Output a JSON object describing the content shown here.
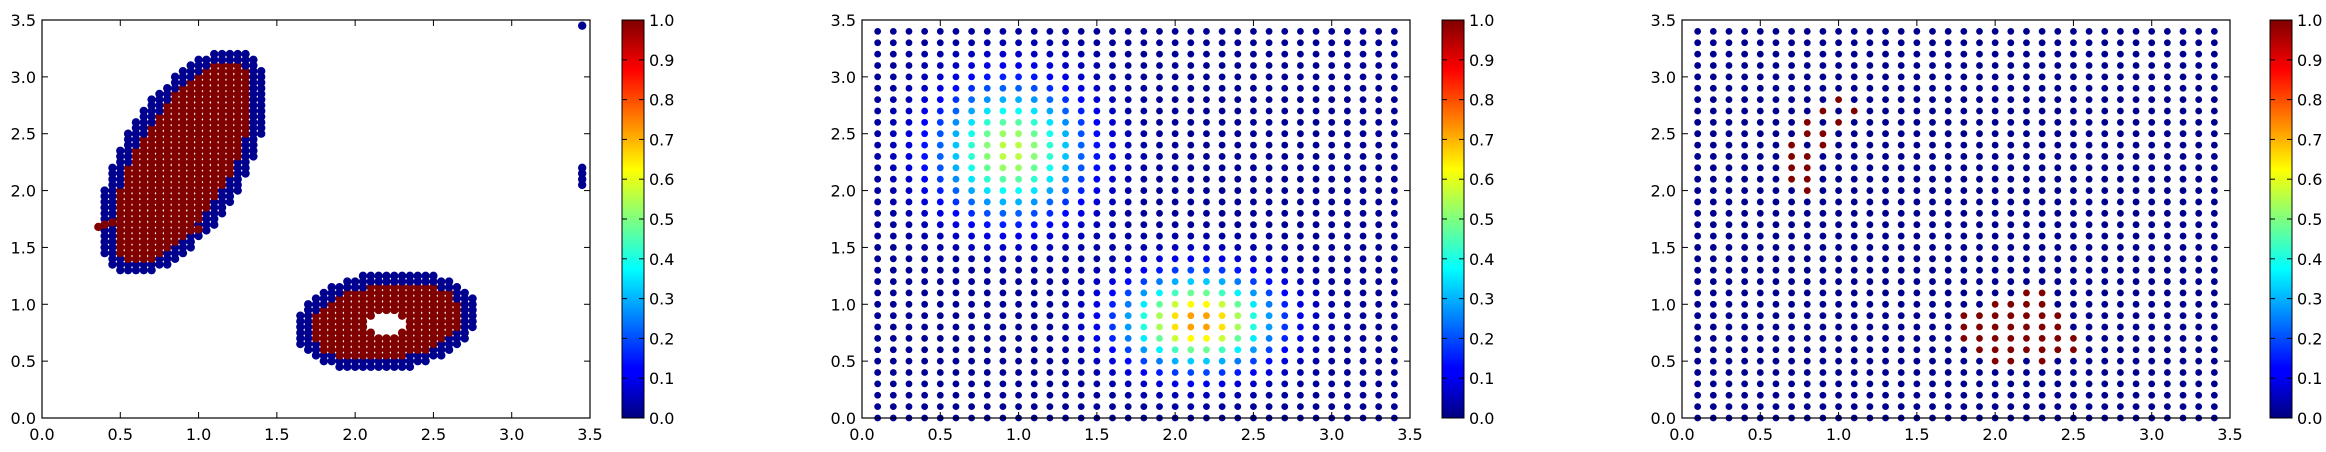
{
  "figure": {
    "background": "#ffffff",
    "marker_color_low": "#00008f",
    "marker_color_high": "#800000",
    "colormap": "jet"
  },
  "chart_data": [
    {
      "type": "scatter",
      "title": "",
      "xlabel": "",
      "ylabel": "",
      "xlim": [
        0.0,
        3.5
      ],
      "ylim": [
        0.0,
        3.5
      ],
      "xticks": [
        "0.0",
        "0.5",
        "1.0",
        "1.5",
        "2.0",
        "2.5",
        "3.0",
        "3.5"
      ],
      "yticks": [
        "0.0",
        "0.5",
        "1.0",
        "1.5",
        "2.0",
        "2.5",
        "3.0",
        "3.5"
      ],
      "grid": false,
      "colorbar": {
        "range": [
          0.0,
          1.0
        ],
        "ticks": [
          "0.0",
          "0.1",
          "0.2",
          "0.3",
          "0.4",
          "0.5",
          "0.6",
          "0.7",
          "0.8",
          "0.9",
          "1.0"
        ]
      },
      "description_of_points": "binary-valued points (0 or 1): two blob-shaped clusters, value 1 in interior, value 0 on border; outlier points at x≈3.45",
      "clusters": [
        {
          "shape": "elongated blob",
          "center": [
            0.85,
            2.25
          ],
          "value_core": 1.0,
          "value_border": 0.0
        },
        {
          "shape": "ring blob with hole",
          "center": [
            2.2,
            0.85
          ],
          "value_core": 1.0,
          "value_border": 0.0,
          "hole_center": [
            2.2,
            0.82
          ]
        }
      ],
      "outliers": [
        {
          "x": 3.45,
          "y": 3.45,
          "v": 0.0
        },
        {
          "x": 3.45,
          "y": 2.2,
          "v": 0.0
        },
        {
          "x": 3.45,
          "y": 2.15,
          "v": 0.0
        },
        {
          "x": 3.45,
          "y": 2.1,
          "v": 0.0
        },
        {
          "x": 3.45,
          "y": 2.05,
          "v": 0.0
        }
      ]
    },
    {
      "type": "scatter",
      "title": "",
      "xlabel": "",
      "ylabel": "",
      "xlim": [
        0.0,
        3.5
      ],
      "ylim": [
        0.0,
        3.5
      ],
      "xticks": [
        "0.0",
        "0.5",
        "1.0",
        "1.5",
        "2.0",
        "2.5",
        "3.0",
        "3.5"
      ],
      "yticks": [
        "0.0",
        "0.5",
        "1.0",
        "1.5",
        "2.0",
        "2.5",
        "3.0",
        "3.5"
      ],
      "grid": false,
      "colorbar": {
        "range": [
          0.0,
          1.0
        ],
        "ticks": [
          "0.0",
          "0.1",
          "0.2",
          "0.3",
          "0.4",
          "0.5",
          "0.6",
          "0.7",
          "0.8",
          "0.9",
          "1.0"
        ]
      },
      "grid_points": {
        "x_start": 0.1,
        "x_end": 3.4,
        "x_step": 0.1,
        "y_start": 0.0,
        "y_end": 3.4,
        "y_step": 0.1
      },
      "field": {
        "kind": "sum of two gaussian bumps",
        "bumps": [
          {
            "center": [
              0.95,
              2.35
            ],
            "sigma": [
              0.45,
              0.55
            ],
            "amplitude": 0.55
          },
          {
            "center": [
              2.15,
              0.85
            ],
            "sigma": [
              0.45,
              0.38
            ],
            "amplitude": 0.72
          }
        ]
      }
    },
    {
      "type": "scatter",
      "title": "",
      "xlabel": "",
      "ylabel": "",
      "xlim": [
        0.0,
        3.5
      ],
      "ylim": [
        0.0,
        3.5
      ],
      "xticks": [
        "0.0",
        "0.5",
        "1.0",
        "1.5",
        "2.0",
        "2.5",
        "3.0",
        "3.5"
      ],
      "yticks": [
        "0.0",
        "0.5",
        "1.0",
        "1.5",
        "2.0",
        "2.5",
        "3.0",
        "3.5"
      ],
      "grid": false,
      "colorbar": {
        "range": [
          0.0,
          1.0
        ],
        "ticks": [
          "0.0",
          "0.1",
          "0.2",
          "0.3",
          "0.4",
          "0.5",
          "0.6",
          "0.7",
          "0.8",
          "0.9",
          "1.0"
        ]
      },
      "grid_points": {
        "x_start": 0.1,
        "x_end": 3.4,
        "x_step": 0.1,
        "y_start": 0.0,
        "y_end": 3.4,
        "y_step": 0.1
      },
      "high_value_points": [
        [
          1.0,
          2.8
        ],
        [
          0.9,
          2.7
        ],
        [
          1.1,
          2.7
        ],
        [
          0.8,
          2.6
        ],
        [
          1.0,
          2.6
        ],
        [
          0.8,
          2.5
        ],
        [
          0.9,
          2.5
        ],
        [
          0.7,
          2.4
        ],
        [
          0.9,
          2.4
        ],
        [
          0.7,
          2.3
        ],
        [
          0.8,
          2.3
        ],
        [
          0.7,
          2.2
        ],
        [
          0.8,
          2.2
        ],
        [
          0.7,
          2.1
        ],
        [
          0.8,
          2.1
        ],
        [
          0.8,
          2.0
        ],
        [
          2.2,
          1.1
        ],
        [
          2.3,
          1.1
        ],
        [
          2.0,
          1.0
        ],
        [
          2.1,
          1.0
        ],
        [
          2.2,
          1.0
        ],
        [
          2.3,
          1.0
        ],
        [
          1.8,
          0.9
        ],
        [
          1.9,
          0.9
        ],
        [
          2.0,
          0.9
        ],
        [
          2.1,
          0.9
        ],
        [
          2.2,
          0.9
        ],
        [
          2.3,
          0.9
        ],
        [
          2.4,
          0.9
        ],
        [
          1.8,
          0.8
        ],
        [
          1.9,
          0.8
        ],
        [
          2.0,
          0.8
        ],
        [
          2.1,
          0.8
        ],
        [
          2.2,
          0.8
        ],
        [
          2.3,
          0.8
        ],
        [
          2.4,
          0.8
        ],
        [
          1.8,
          0.7
        ],
        [
          1.9,
          0.7
        ],
        [
          2.0,
          0.7
        ],
        [
          2.1,
          0.7
        ],
        [
          2.2,
          0.7
        ],
        [
          2.3,
          0.7
        ],
        [
          2.4,
          0.7
        ],
        [
          2.5,
          0.7
        ],
        [
          1.9,
          0.6
        ],
        [
          2.0,
          0.6
        ],
        [
          2.1,
          0.6
        ],
        [
          2.2,
          0.6
        ],
        [
          2.3,
          0.6
        ],
        [
          2.4,
          0.6
        ],
        [
          2.5,
          0.6
        ],
        [
          2.0,
          0.5
        ],
        [
          2.1,
          0.5
        ],
        [
          2.3,
          0.5
        ]
      ],
      "low_value": 0.0,
      "high_value": 1.0
    }
  ]
}
